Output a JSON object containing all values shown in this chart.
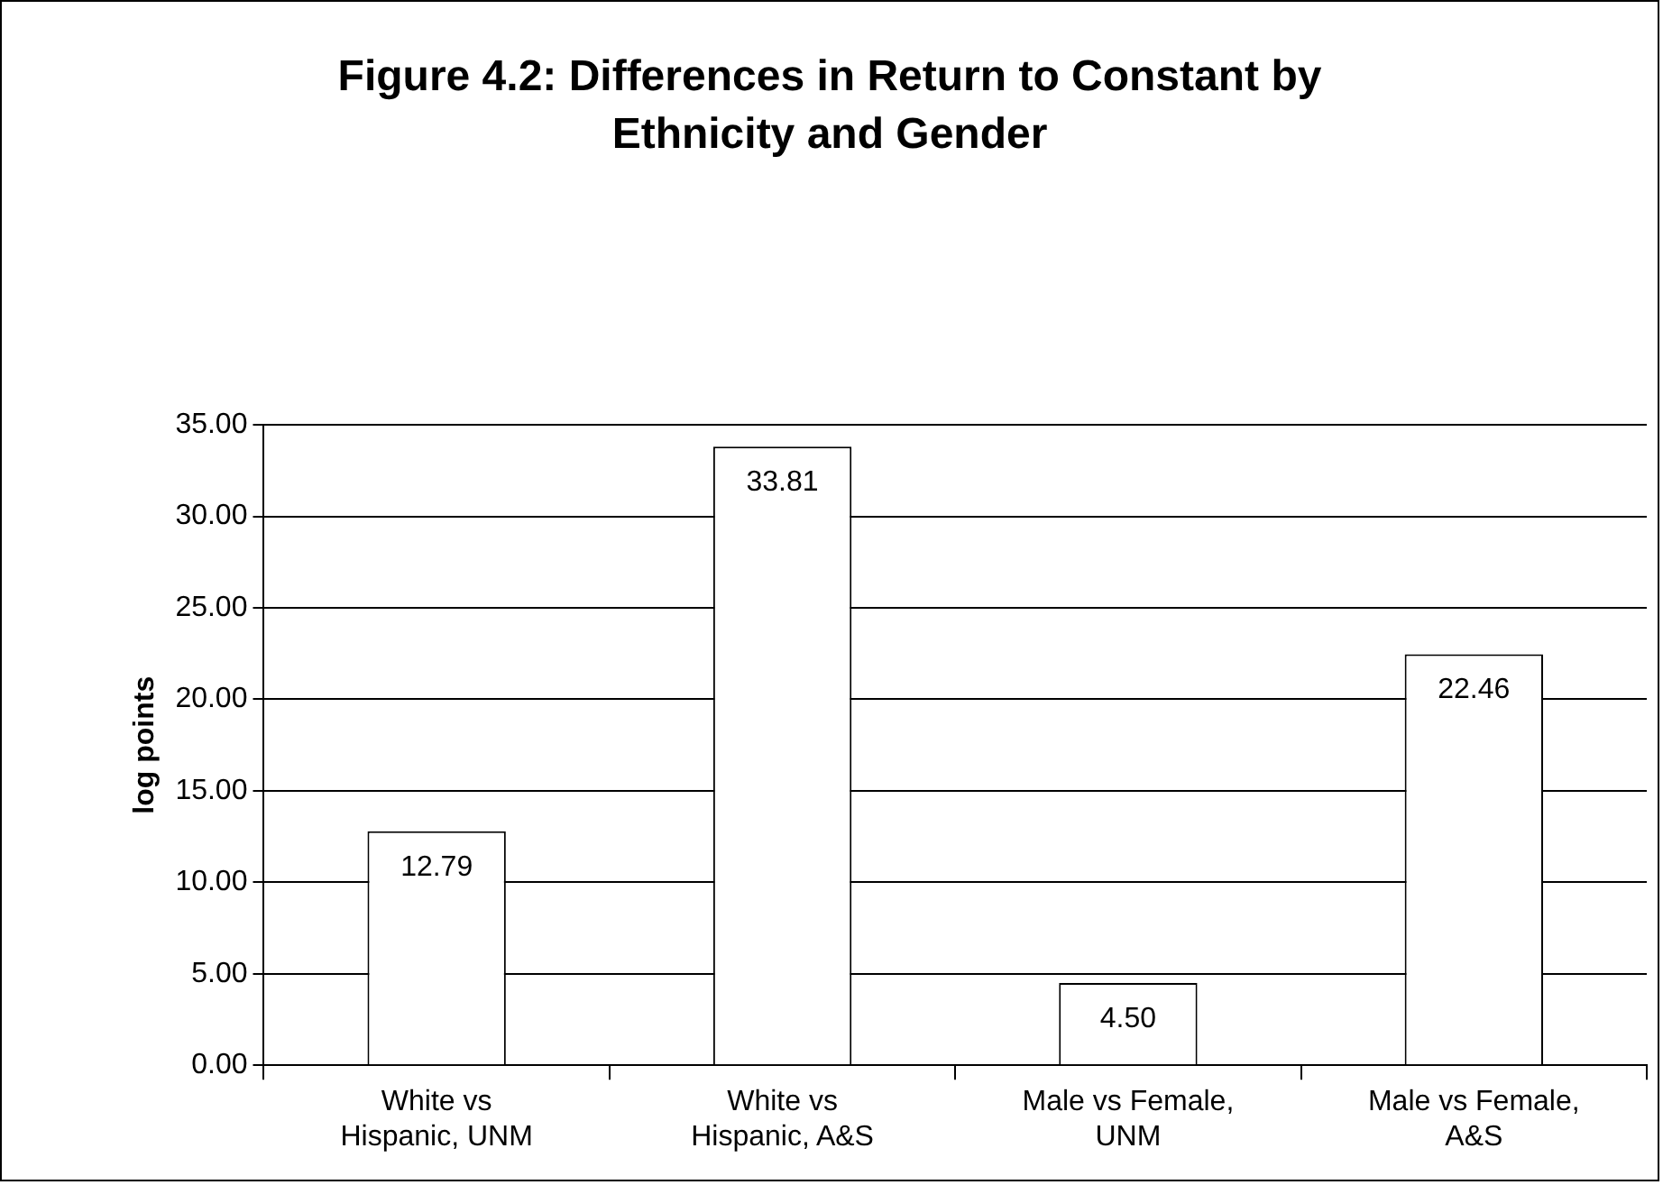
{
  "chart_data": {
    "type": "bar",
    "title": "Figure 4.2:  Differences in Return to Constant by Ethnicity and Gender",
    "ylabel": "log points",
    "categories": [
      "White vs Hispanic, UNM",
      "White vs Hispanic, A&S",
      "Male vs Female, UNM",
      "Male vs Female, A&S"
    ],
    "values": [
      12.79,
      33.81,
      4.5,
      22.46
    ],
    "value_labels": [
      "12.79",
      "33.81",
      "4.50",
      "22.46"
    ],
    "color": "#ffffff",
    "ylim": [
      0,
      35
    ],
    "yticks": [
      {
        "value": 0,
        "label": "0.00"
      },
      {
        "value": 5,
        "label": "5.00"
      },
      {
        "value": 10,
        "label": "10.00"
      },
      {
        "value": 15,
        "label": "15.00"
      },
      {
        "value": 20,
        "label": "20.00"
      },
      {
        "value": 25,
        "label": "25.00"
      },
      {
        "value": 30,
        "label": "30.00"
      },
      {
        "value": 35,
        "label": "35.00"
      }
    ],
    "grid": "y",
    "legend": false
  }
}
